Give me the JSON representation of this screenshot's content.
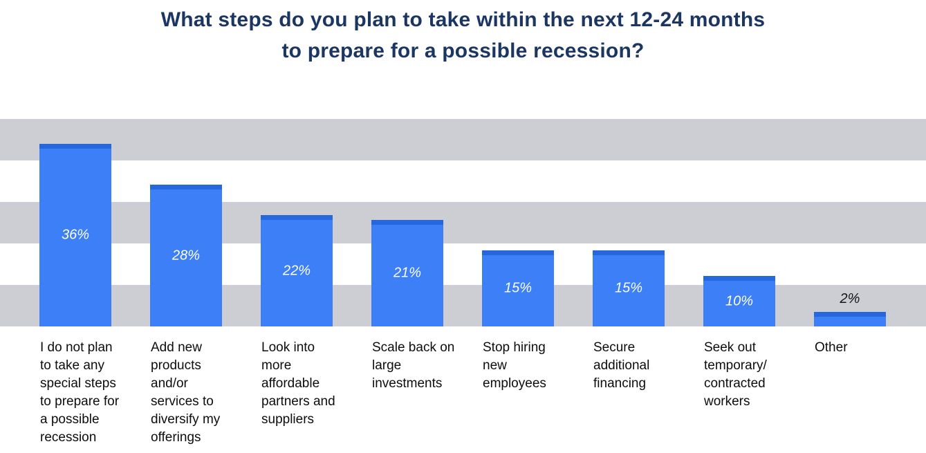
{
  "title": {
    "line1": "What steps do you plan to take within the next 12-24 months",
    "line2": "to prepare for a possible recession?"
  },
  "colors": {
    "title": "#1c3664",
    "bar": "#3d7ff7",
    "bar_cap": "#2667dd",
    "band_gray": "#cdced3",
    "label_text": "#0d0d0d",
    "value_label_inside": "#ffffff",
    "value_label_outside": "#141414"
  },
  "chart_data": {
    "type": "bar",
    "title": "What steps do you plan to take within the next 12-24 months to prepare for a possible recession?",
    "xlabel": "",
    "ylabel": "",
    "ylim": [
      0,
      41
    ],
    "legend": "none",
    "grid": "horizontal alternating gray/white bands, 5 bands",
    "categories": [
      "I do not plan to take any special steps to prepare for a possible recession",
      "Add new products and/or services to diversify my offerings",
      "Look into more affordable partners and suppliers",
      "Scale back on large investments",
      "Stop hiring new employees",
      "Secure additional financing",
      "Seek out temporary/contracted workers",
      "Other"
    ],
    "values": [
      36,
      28,
      22,
      21,
      15,
      15,
      10,
      2
    ],
    "bars": [
      {
        "value": 36,
        "value_label": "36%",
        "label_position": "inside",
        "category": "I do not plan to take any special steps to prepare for a possible recession",
        "category_lines": [
          "I do not plan",
          "to take any",
          "special steps",
          "to prepare for",
          "a possible",
          "recession"
        ]
      },
      {
        "value": 28,
        "value_label": "28%",
        "label_position": "inside",
        "category": "Add new products and/or services to diversify my offerings",
        "category_lines": [
          "Add new",
          "products",
          "and/or",
          "services to",
          "diversify my",
          "offerings"
        ]
      },
      {
        "value": 22,
        "value_label": "22%",
        "label_position": "inside",
        "category": "Look into more affordable partners and suppliers",
        "category_lines": [
          "Look into",
          "more",
          "affordable",
          "partners and",
          "suppliers"
        ]
      },
      {
        "value": 21,
        "value_label": "21%",
        "label_position": "inside",
        "category": "Scale back on large investments",
        "category_lines": [
          "Scale back on",
          "large",
          "investments"
        ]
      },
      {
        "value": 15,
        "value_label": "15%",
        "label_position": "inside",
        "category": "Stop hiring new employees",
        "category_lines": [
          "Stop hiring",
          "new",
          "employees"
        ]
      },
      {
        "value": 15,
        "value_label": "15%",
        "label_position": "inside",
        "category": "Secure additional financing",
        "category_lines": [
          "Secure",
          "additional",
          "financing"
        ]
      },
      {
        "value": 10,
        "value_label": "10%",
        "label_position": "inside",
        "category": "Seek out temporary/contracted workers",
        "category_lines": [
          "Seek out",
          "temporary/",
          "contracted",
          "workers"
        ]
      },
      {
        "value": 2,
        "value_label": "2%",
        "label_position": "outside",
        "category": "Other",
        "category_lines": [
          "Other"
        ]
      }
    ]
  }
}
